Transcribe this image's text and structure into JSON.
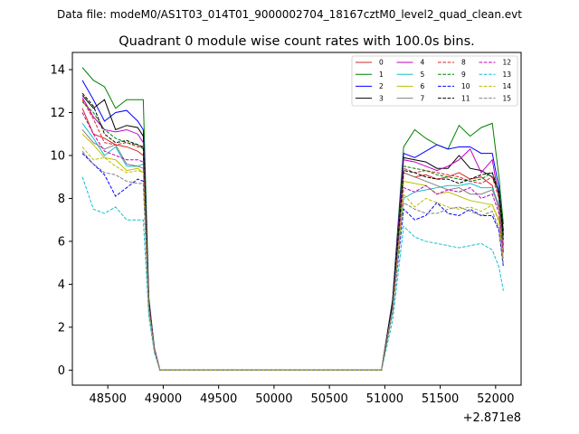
{
  "chart_data": {
    "type": "line",
    "suptitle": "Data file: modeM0/AS1T03_014T01_9000002704_18167cztM0_level2_quad_clean.evt",
    "title": "Quadrant 0 module wise count rates with 100.0s bins.",
    "xlabel": "",
    "ylabel": "",
    "x_offset_label": "+2.871e8",
    "xlim": [
      48180,
      52230
    ],
    "ylim": [
      -0.7,
      14.8
    ],
    "xticks": [
      48500,
      49000,
      49500,
      50000,
      50500,
      51000,
      51500,
      52000
    ],
    "yticks": [
      0,
      2,
      4,
      6,
      8,
      10,
      12,
      14
    ],
    "legend_position": "upper-right",
    "x": [
      48270,
      48370,
      48470,
      48570,
      48670,
      48770,
      48820,
      48870,
      48920,
      48970,
      49070,
      49270,
      49570,
      49870,
      50170,
      50470,
      50770,
      50970,
      51070,
      51170,
      51270,
      51370,
      51470,
      51570,
      51670,
      51770,
      51870,
      51970,
      52030,
      52070
    ],
    "series": [
      {
        "name": "0",
        "color": "#d62728",
        "dash": "solid",
        "values": [
          12.2,
          11.0,
          10.8,
          10.5,
          10.4,
          10.2,
          10.0,
          3.0,
          1.0,
          0.0,
          0.0,
          0.0,
          0.0,
          0.0,
          0.0,
          0.0,
          0.0,
          0.0,
          3.0,
          9.2,
          9.0,
          9.1,
          8.9,
          9.0,
          9.2,
          8.9,
          9.0,
          8.6,
          7.5,
          5.5
        ]
      },
      {
        "name": "1",
        "color": "#008000",
        "dash": "solid",
        "values": [
          14.1,
          13.5,
          13.2,
          12.2,
          12.6,
          12.6,
          12.6,
          3.4,
          1.0,
          0.0,
          0.0,
          0.0,
          0.0,
          0.0,
          0.0,
          0.0,
          0.0,
          0.0,
          3.3,
          10.4,
          11.2,
          10.8,
          10.5,
          10.3,
          11.4,
          10.9,
          11.3,
          11.5,
          9.0,
          6.8
        ]
      },
      {
        "name": "2",
        "color": "#0000ff",
        "dash": "solid",
        "values": [
          13.5,
          12.6,
          11.6,
          12.0,
          12.1,
          11.6,
          11.2,
          3.3,
          1.0,
          0.0,
          0.0,
          0.0,
          0.0,
          0.0,
          0.0,
          0.0,
          0.0,
          0.0,
          3.2,
          10.1,
          9.9,
          10.2,
          10.5,
          10.3,
          10.4,
          10.4,
          10.1,
          10.1,
          8.5,
          6.3
        ]
      },
      {
        "name": "3",
        "color": "#000000",
        "dash": "solid",
        "values": [
          12.8,
          12.2,
          12.6,
          11.2,
          11.4,
          11.3,
          10.9,
          3.2,
          1.0,
          0.0,
          0.0,
          0.0,
          0.0,
          0.0,
          0.0,
          0.0,
          0.0,
          0.0,
          3.1,
          9.9,
          9.8,
          9.7,
          9.4,
          9.4,
          10.0,
          9.4,
          9.3,
          9.0,
          8.3,
          6.5
        ]
      },
      {
        "name": "4",
        "color": "#bf00bf",
        "dash": "solid",
        "values": [
          12.7,
          11.8,
          11.2,
          11.1,
          11.2,
          11.0,
          10.6,
          3.2,
          1.0,
          0.0,
          0.0,
          0.0,
          0.0,
          0.0,
          0.0,
          0.0,
          0.0,
          0.0,
          3.1,
          9.8,
          9.7,
          9.5,
          9.3,
          9.5,
          9.8,
          10.3,
          9.2,
          9.8,
          8.0,
          5.8
        ]
      },
      {
        "name": "5",
        "color": "#17becf",
        "dash": "solid",
        "values": [
          11.5,
          10.8,
          10.0,
          10.4,
          9.5,
          9.5,
          9.6,
          3.0,
          1.0,
          0.0,
          0.0,
          0.0,
          0.0,
          0.0,
          0.0,
          0.0,
          0.0,
          0.0,
          2.9,
          8.0,
          8.3,
          8.4,
          8.5,
          8.6,
          8.6,
          8.7,
          8.5,
          8.5,
          7.7,
          5.5
        ]
      },
      {
        "name": "6",
        "color": "#bfbf00",
        "dash": "solid",
        "values": [
          11.0,
          10.5,
          9.9,
          9.8,
          9.3,
          9.4,
          9.2,
          2.9,
          1.0,
          0.0,
          0.0,
          0.0,
          0.0,
          0.0,
          0.0,
          0.0,
          0.0,
          0.0,
          2.8,
          8.8,
          8.7,
          8.6,
          8.2,
          8.3,
          8.1,
          7.9,
          7.8,
          7.7,
          7.0,
          5.2
        ]
      },
      {
        "name": "7",
        "color": "#808080",
        "dash": "solid",
        "values": [
          11.2,
          10.6,
          10.3,
          10.5,
          9.6,
          9.5,
          9.4,
          3.0,
          1.0,
          0.0,
          0.0,
          0.0,
          0.0,
          0.0,
          0.0,
          0.0,
          0.0,
          0.0,
          2.9,
          9.2,
          9.0,
          8.8,
          8.6,
          8.4,
          8.5,
          8.2,
          8.2,
          8.4,
          7.6,
          5.6
        ]
      },
      {
        "name": "8",
        "color": "#d62728",
        "dash": "dashed",
        "values": [
          12.6,
          11.7,
          10.6,
          10.5,
          10.6,
          10.4,
          10.4,
          3.1,
          1.0,
          0.0,
          0.0,
          0.0,
          0.0,
          0.0,
          0.0,
          0.0,
          0.0,
          0.0,
          3.0,
          9.4,
          9.2,
          9.3,
          9.2,
          9.1,
          9.0,
          8.8,
          8.7,
          9.0,
          8.0,
          5.8
        ]
      },
      {
        "name": "9",
        "color": "#008000",
        "dash": "dashed",
        "values": [
          12.5,
          12.0,
          11.2,
          10.8,
          10.6,
          10.5,
          10.3,
          3.1,
          1.0,
          0.0,
          0.0,
          0.0,
          0.0,
          0.0,
          0.0,
          0.0,
          0.0,
          0.0,
          3.0,
          9.5,
          9.4,
          9.3,
          9.1,
          9.0,
          8.9,
          8.8,
          8.9,
          9.2,
          8.2,
          6.0
        ]
      },
      {
        "name": "10",
        "color": "#0000ff",
        "dash": "dashed",
        "values": [
          10.1,
          9.6,
          9.1,
          8.1,
          8.5,
          8.9,
          8.8,
          2.8,
          1.0,
          0.0,
          0.0,
          0.0,
          0.0,
          0.0,
          0.0,
          0.0,
          0.0,
          0.0,
          2.7,
          7.5,
          7.0,
          7.2,
          7.8,
          7.3,
          7.2,
          7.5,
          7.2,
          7.2,
          6.5,
          4.8
        ]
      },
      {
        "name": "11",
        "color": "#000000",
        "dash": "dashed",
        "values": [
          12.9,
          12.3,
          11.0,
          10.6,
          10.7,
          10.5,
          10.4,
          3.1,
          1.0,
          0.0,
          0.0,
          0.0,
          0.0,
          0.0,
          0.0,
          0.0,
          0.0,
          0.0,
          3.1,
          9.3,
          9.2,
          9.0,
          8.9,
          8.9,
          8.7,
          8.9,
          9.1,
          9.2,
          8.3,
          6.1
        ]
      },
      {
        "name": "12",
        "color": "#bf00bf",
        "dash": "dashed",
        "values": [
          12.0,
          11.0,
          10.2,
          10.0,
          9.8,
          9.8,
          9.7,
          3.0,
          1.0,
          0.0,
          0.0,
          0.0,
          0.0,
          0.0,
          0.0,
          0.0,
          0.0,
          0.0,
          2.9,
          8.5,
          8.3,
          8.6,
          8.2,
          8.4,
          8.3,
          8.5,
          8.0,
          8.2,
          7.3,
          5.4
        ]
      },
      {
        "name": "13",
        "color": "#17becf",
        "dash": "dashed",
        "values": [
          9.0,
          7.5,
          7.3,
          7.6,
          7.0,
          7.0,
          7.0,
          2.5,
          0.8,
          0.0,
          0.0,
          0.0,
          0.0,
          0.0,
          0.0,
          0.0,
          0.0,
          0.0,
          2.3,
          6.7,
          6.2,
          6.0,
          5.9,
          5.8,
          5.7,
          5.8,
          5.9,
          5.6,
          4.8,
          3.7
        ]
      },
      {
        "name": "14",
        "color": "#bfbf00",
        "dash": "dashed",
        "values": [
          10.4,
          9.8,
          9.9,
          9.5,
          9.2,
          9.3,
          9.2,
          2.9,
          0.9,
          0.0,
          0.0,
          0.0,
          0.0,
          0.0,
          0.0,
          0.0,
          0.0,
          0.0,
          2.8,
          8.2,
          7.6,
          8.0,
          7.8,
          7.6,
          7.5,
          7.6,
          7.4,
          7.7,
          6.9,
          5.0
        ]
      },
      {
        "name": "15",
        "color": "#808080",
        "dash": "dashed",
        "values": [
          10.2,
          9.6,
          9.2,
          9.1,
          8.8,
          8.7,
          8.7,
          2.8,
          0.9,
          0.0,
          0.0,
          0.0,
          0.0,
          0.0,
          0.0,
          0.0,
          0.0,
          0.0,
          2.7,
          7.8,
          7.5,
          7.3,
          7.3,
          7.5,
          7.6,
          7.4,
          7.2,
          7.4,
          6.6,
          4.9
        ]
      }
    ]
  }
}
